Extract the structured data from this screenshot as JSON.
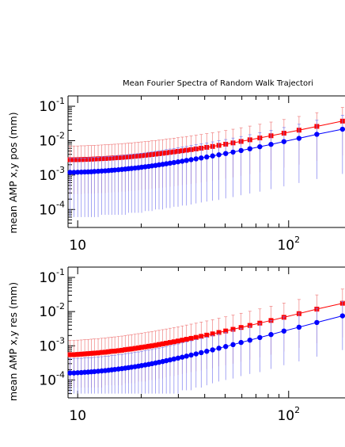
{
  "figure": {
    "title": "Mean Fourier Spectra of Random Walk Trajectori"
  },
  "colors": {
    "series_red": "#ff0000",
    "series_blue": "#0000ff",
    "errorbar_red": "#f08080",
    "errorbar_blue": "#8080f0",
    "axes": "#000000"
  },
  "chart_data": [
    {
      "type": "line",
      "title": "Mean Fourier Spectra of Random Walk Trajectori",
      "ylabel": "mean AMP x,y pos (mm)",
      "xlabel": "",
      "xscale": "log",
      "yscale": "log",
      "xlim": [
        9,
        185
      ],
      "ylim": [
        3e-05,
        0.2
      ],
      "x_ticks": [
        {
          "value": 10,
          "base": "10",
          "exp": ""
        },
        {
          "value": 100,
          "base": "10",
          "exp": "2"
        }
      ],
      "y_ticks": [
        {
          "value": 0.1,
          "base": "10",
          "exp": "-1"
        },
        {
          "value": 0.01,
          "base": "10",
          "exp": "-2"
        },
        {
          "value": 0.001,
          "base": "10",
          "exp": "-3"
        },
        {
          "value": 0.0001,
          "base": "10",
          "exp": "-4"
        }
      ],
      "grid": false,
      "legend": "none",
      "series": [
        {
          "color": "red",
          "marker": "square",
          "x": [
            9.2,
            9.6,
            10,
            10.4,
            10.8,
            11.2,
            11.6,
            12,
            12.5,
            13,
            13.5,
            14,
            14.5,
            15,
            15.6,
            16.2,
            16.8,
            17.4,
            18,
            18.7,
            19.4,
            20.1,
            20.9,
            21.7,
            22.5,
            23.4,
            24.3,
            25.3,
            26.3,
            27.4,
            28.6,
            29.9,
            31.3,
            32.8,
            34.5,
            36.4,
            38.5,
            40.9,
            43.6,
            46.7,
            50.3,
            54.5,
            59.5,
            65.5,
            73,
            82.5,
            95,
            112,
            136,
            180
          ],
          "y": [
            0.0028,
            0.0028,
            0.00281,
            0.00283,
            0.00285,
            0.00287,
            0.0029,
            0.00293,
            0.00297,
            0.003,
            0.00304,
            0.00308,
            0.00312,
            0.00317,
            0.00322,
            0.00327,
            0.00333,
            0.00339,
            0.00346,
            0.00353,
            0.0036,
            0.00368,
            0.00377,
            0.00386,
            0.00396,
            0.00406,
            0.00418,
            0.0043,
            0.00443,
            0.00457,
            0.00473,
            0.0049,
            0.00508,
            0.00528,
            0.0055,
            0.00576,
            0.00605,
            0.0064,
            0.0068,
            0.0073,
            0.0079,
            0.0086,
            0.0095,
            0.0106,
            0.012,
            0.0139,
            0.0165,
            0.0202,
            0.026,
            0.037
          ],
          "err_hi": [
            0.007,
            0.007,
            0.007,
            0.0071,
            0.0071,
            0.0072,
            0.0072,
            0.0073,
            0.0074,
            0.0075,
            0.0076,
            0.0077,
            0.0078,
            0.0079,
            0.008,
            0.0082,
            0.0083,
            0.0085,
            0.0086,
            0.0088,
            0.009,
            0.0092,
            0.0094,
            0.0096,
            0.0099,
            0.0101,
            0.0104,
            0.0107,
            0.0111,
            0.0114,
            0.0118,
            0.0122,
            0.0127,
            0.0132,
            0.0137,
            0.0144,
            0.0151,
            0.016,
            0.017,
            0.0182,
            0.0197,
            0.0215,
            0.0237,
            0.0265,
            0.03,
            0.0347,
            0.0412,
            0.0505,
            0.065,
            0.0925
          ],
          "err_lo": [
            0.00028,
            0.00028,
            0.00028,
            0.00028,
            0.00029,
            0.00029,
            0.00029,
            0.00029,
            0.0003,
            0.0003,
            0.0003,
            0.00031,
            0.00031,
            0.00032,
            0.00032,
            0.00033,
            0.00033,
            0.00034,
            0.00035,
            0.00035,
            0.00036,
            0.00037,
            0.00038,
            0.00039,
            0.0004,
            0.00041,
            0.00042,
            0.00043,
            0.00044,
            0.00046,
            0.00047,
            0.00049,
            0.00051,
            0.00053,
            0.00055,
            0.00058,
            0.00061,
            0.00064,
            0.00068,
            0.00073,
            0.00079,
            0.00086,
            0.00095,
            0.00106,
            0.0012,
            0.00139,
            0.00165,
            0.00202,
            0.0026,
            0.0037
          ]
        },
        {
          "color": "blue",
          "marker": "circle",
          "x": [
            9.2,
            9.6,
            10,
            10.4,
            10.8,
            11.2,
            11.6,
            12,
            12.5,
            13,
            13.5,
            14,
            14.5,
            15,
            15.6,
            16.2,
            16.8,
            17.4,
            18,
            18.7,
            19.4,
            20.1,
            20.9,
            21.7,
            22.5,
            23.4,
            24.3,
            25.3,
            26.3,
            27.4,
            28.6,
            29.9,
            31.3,
            32.8,
            34.5,
            36.4,
            38.5,
            40.9,
            43.6,
            46.7,
            50.3,
            54.5,
            59.5,
            65.5,
            73,
            82.5,
            95,
            112,
            136,
            180
          ],
          "y": [
            0.0012,
            0.0012,
            0.00121,
            0.00122,
            0.00123,
            0.00124,
            0.00125,
            0.00127,
            0.00129,
            0.00131,
            0.00133,
            0.00135,
            0.00138,
            0.0014,
            0.00143,
            0.00146,
            0.00149,
            0.00153,
            0.00156,
            0.0016,
            0.00164,
            0.00169,
            0.00174,
            0.00179,
            0.00185,
            0.00191,
            0.00198,
            0.00205,
            0.00213,
            0.00222,
            0.00231,
            0.00242,
            0.00253,
            0.00266,
            0.0028,
            0.00296,
            0.00314,
            0.00335,
            0.0036,
            0.00389,
            0.00423,
            0.00465,
            0.00517,
            0.00582,
            0.00666,
            0.0078,
            0.0094,
            0.0117,
            0.0153,
            0.0215
          ],
          "err_hi": [
            0.0031,
            0.0031,
            0.0031,
            0.0031,
            0.0031,
            0.0032,
            0.0032,
            0.0033,
            0.0033,
            0.0034,
            0.0034,
            0.0035,
            0.0035,
            0.0036,
            0.0037,
            0.0037,
            0.0038,
            0.0039,
            0.004,
            0.0041,
            0.0042,
            0.0043,
            0.0044,
            0.0046,
            0.0047,
            0.0049,
            0.0051,
            0.0052,
            0.0055,
            0.0057,
            0.0059,
            0.0062,
            0.0065,
            0.0068,
            0.0072,
            0.0076,
            0.008,
            0.0086,
            0.0092,
            0.01,
            0.0108,
            0.0119,
            0.0132,
            0.0149,
            0.0171,
            0.02,
            0.0241,
            0.03,
            0.0392,
            0.055
          ],
          "err_lo": [
            6e-05,
            6e-05,
            6e-05,
            6e-05,
            6e-05,
            6e-05,
            6e-05,
            6e-05,
            6e-05,
            7e-05,
            7e-05,
            7e-05,
            7e-05,
            7e-05,
            7e-05,
            7e-05,
            7e-05,
            8e-05,
            8e-05,
            8e-05,
            8e-05,
            8e-05,
            9e-05,
            9e-05,
            9e-05,
            0.0001,
            0.0001,
            0.0001,
            0.00011,
            0.00011,
            0.00012,
            0.00012,
            0.00013,
            0.00013,
            0.00014,
            0.00015,
            0.00016,
            0.00017,
            0.00018,
            0.00019,
            0.00021,
            0.00023,
            0.00026,
            0.00029,
            0.00033,
            0.00039,
            0.00047,
            0.00059,
            0.00077,
            0.00108
          ]
        }
      ]
    },
    {
      "type": "line",
      "title": "",
      "ylabel": "mean AMP x,y res (mm)",
      "xlabel": "",
      "xscale": "log",
      "yscale": "log",
      "xlim": [
        9,
        185
      ],
      "ylim": [
        3e-05,
        0.2
      ],
      "x_ticks": [
        {
          "value": 10,
          "base": "10",
          "exp": ""
        },
        {
          "value": 100,
          "base": "10",
          "exp": "2"
        }
      ],
      "y_ticks": [
        {
          "value": 0.1,
          "base": "10",
          "exp": "-1"
        },
        {
          "value": 0.01,
          "base": "10",
          "exp": "-2"
        },
        {
          "value": 0.001,
          "base": "10",
          "exp": "-3"
        },
        {
          "value": 0.0001,
          "base": "10",
          "exp": "-4"
        }
      ],
      "grid": false,
      "legend": "none",
      "series": [
        {
          "color": "red",
          "marker": "square",
          "x": [
            9.2,
            9.6,
            10,
            10.4,
            10.8,
            11.2,
            11.6,
            12,
            12.5,
            13,
            13.5,
            14,
            14.5,
            15,
            15.6,
            16.2,
            16.8,
            17.4,
            18,
            18.7,
            19.4,
            20.1,
            20.9,
            21.7,
            22.5,
            23.4,
            24.3,
            25.3,
            26.3,
            27.4,
            28.6,
            29.9,
            31.3,
            32.8,
            34.5,
            36.4,
            38.5,
            40.9,
            43.6,
            46.7,
            50.3,
            54.5,
            59.5,
            65.5,
            73,
            82.5,
            95,
            112,
            136,
            180
          ],
          "y": [
            0.00055,
            0.00055,
            0.00056,
            0.00057,
            0.00058,
            0.00059,
            0.0006,
            0.00061,
            0.00062,
            0.00064,
            0.00065,
            0.00067,
            0.00069,
            0.0007,
            0.00072,
            0.00074,
            0.00077,
            0.00079,
            0.00081,
            0.00084,
            0.00087,
            0.0009,
            0.00093,
            0.00097,
            0.001,
            0.00104,
            0.00109,
            0.00114,
            0.00119,
            0.00125,
            0.00131,
            0.00138,
            0.00146,
            0.00155,
            0.00165,
            0.00176,
            0.00189,
            0.00205,
            0.00223,
            0.00245,
            0.00271,
            0.00303,
            0.00343,
            0.00394,
            0.0046,
            0.0055,
            0.0068,
            0.0087,
            0.0118,
            0.0175
          ],
          "err_hi": [
            0.00143,
            0.00143,
            0.00146,
            0.00148,
            0.00151,
            0.00153,
            0.00156,
            0.00159,
            0.00161,
            0.00166,
            0.00169,
            0.00174,
            0.00179,
            0.00182,
            0.00187,
            0.00192,
            0.002,
            0.00205,
            0.00211,
            0.00218,
            0.00226,
            0.00234,
            0.00242,
            0.00252,
            0.0026,
            0.0027,
            0.00283,
            0.00296,
            0.00309,
            0.00325,
            0.00341,
            0.00359,
            0.0038,
            0.00403,
            0.00429,
            0.00458,
            0.00491,
            0.00533,
            0.0058,
            0.00637,
            0.00705,
            0.00788,
            0.00892,
            0.0102,
            0.012,
            0.0143,
            0.0177,
            0.0226,
            0.0307,
            0.0455
          ],
          "err_lo": [
            6e-05,
            6e-05,
            6e-05,
            6e-05,
            6e-05,
            6e-05,
            6e-05,
            6e-05,
            6e-05,
            6e-05,
            7e-05,
            7e-05,
            7e-05,
            7e-05,
            7e-05,
            7e-05,
            8e-05,
            8e-05,
            8e-05,
            8e-05,
            9e-05,
            9e-05,
            9e-05,
            0.0001,
            0.0001,
            0.0001,
            0.00011,
            0.00011,
            0.00012,
            0.00013,
            0.00013,
            0.00014,
            0.00015,
            0.00016,
            0.00017,
            0.00018,
            0.00019,
            0.00021,
            0.00022,
            0.00025,
            0.00027,
            0.0003,
            0.00034,
            0.00039,
            0.00046,
            0.00055,
            0.00068,
            0.00087,
            0.00118,
            0.00175
          ]
        },
        {
          "color": "blue",
          "marker": "circle",
          "x": [
            9.2,
            9.6,
            10,
            10.4,
            10.8,
            11.2,
            11.6,
            12,
            12.5,
            13,
            13.5,
            14,
            14.5,
            15,
            15.6,
            16.2,
            16.8,
            17.4,
            18,
            18.7,
            19.4,
            20.1,
            20.9,
            21.7,
            22.5,
            23.4,
            24.3,
            25.3,
            26.3,
            27.4,
            28.6,
            29.9,
            31.3,
            32.8,
            34.5,
            36.4,
            38.5,
            40.9,
            43.6,
            46.7,
            50.3,
            54.5,
            59.5,
            65.5,
            73,
            82.5,
            95,
            112,
            136,
            180
          ],
          "y": [
            0.00016,
            0.00016,
            0.000163,
            0.000165,
            0.000168,
            0.00017,
            0.000173,
            0.000176,
            0.00018,
            0.000184,
            0.000188,
            0.000193,
            0.000198,
            0.000203,
            0.000209,
            0.000215,
            0.000222,
            0.000229,
            0.000237,
            0.000245,
            0.000254,
            0.000264,
            0.000275,
            0.000287,
            0.0003,
            0.000314,
            0.00033,
            0.000347,
            0.000366,
            0.000387,
            0.00041,
            0.000436,
            0.000465,
            0.000498,
            0.000536,
            0.000579,
            0.00063,
            0.00069,
            0.00076,
            0.00085,
            0.00095,
            0.00108,
            0.00125,
            0.00146,
            0.00174,
            0.00213,
            0.0027,
            0.0035,
            0.0048,
            0.0075
          ],
          "err_hi": [
            0.00042,
            0.00042,
            0.00043,
            0.00043,
            0.00044,
            0.00045,
            0.00045,
            0.00046,
            0.00047,
            0.00048,
            0.00049,
            0.0005,
            0.00052,
            0.00053,
            0.00055,
            0.00056,
            0.00058,
            0.0006,
            0.00062,
            0.00064,
            0.00066,
            0.00069,
            0.00072,
            0.00075,
            0.00078,
            0.00082,
            0.00086,
            0.0009,
            0.00095,
            0.00101,
            0.00107,
            0.00113,
            0.00121,
            0.00129,
            0.00139,
            0.00151,
            0.00164,
            0.00179,
            0.00198,
            0.00221,
            0.00247,
            0.00281,
            0.00325,
            0.0038,
            0.00452,
            0.00554,
            0.00702,
            0.0091,
            0.0125,
            0.0195
          ],
          "err_lo": [
            4e-05,
            4e-05,
            4e-05,
            4e-05,
            4e-05,
            4e-05,
            4e-05,
            4e-05,
            4e-05,
            4e-05,
            4e-05,
            4e-05,
            4e-05,
            4e-05,
            4e-05,
            4e-05,
            4e-05,
            4e-05,
            4e-05,
            4e-05,
            4e-05,
            4e-05,
            4e-05,
            4e-05,
            4e-05,
            4e-05,
            4e-05,
            4e-05,
            4e-05,
            4e-05,
            4e-05,
            4e-05,
            5e-05,
            5e-05,
            5e-05,
            6e-05,
            6e-05,
            7e-05,
            8e-05,
            9e-05,
            0.0001,
            0.00011,
            0.00013,
            0.00015,
            0.00017,
            0.00021,
            0.00027,
            0.00035,
            0.00048,
            0.00075
          ]
        }
      ]
    }
  ]
}
